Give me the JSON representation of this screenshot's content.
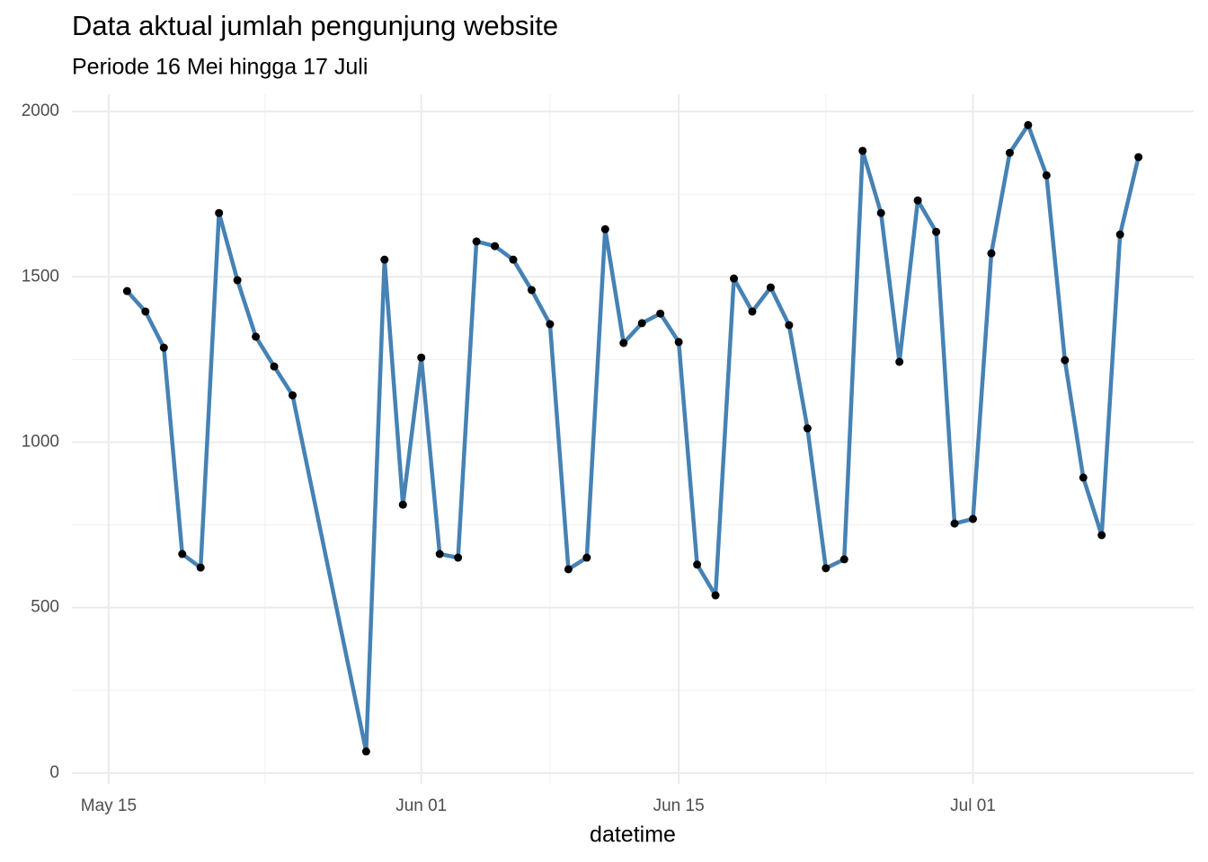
{
  "chart_data": {
    "type": "line",
    "title": "Data aktual jumlah pengunjung website",
    "subtitle": "Periode 16 Mei hingga 17 Juli",
    "x_label": "datetime",
    "x": [
      "05-16",
      "05-17",
      "05-18",
      "05-19",
      "05-20",
      "05-21",
      "05-22",
      "05-23",
      "05-24",
      "05-25",
      "05-29",
      "05-30",
      "05-31",
      "06-01",
      "06-02",
      "06-03",
      "06-04",
      "06-05",
      "06-06",
      "06-07",
      "06-08",
      "06-09",
      "06-10",
      "06-11",
      "06-12",
      "06-13",
      "06-14",
      "06-15",
      "06-16",
      "06-17",
      "06-18",
      "06-19",
      "06-20",
      "06-21",
      "06-22",
      "06-23",
      "06-24",
      "06-25",
      "06-26",
      "06-27",
      "06-28",
      "06-29",
      "06-30",
      "07-01",
      "07-02",
      "07-03",
      "07-04",
      "07-05",
      "07-06",
      "07-07",
      "07-08",
      "07-09",
      "07-10"
    ],
    "values": [
      1457,
      1395,
      1286,
      662,
      621,
      1693,
      1490,
      1319,
      1229,
      1142,
      65,
      1552,
      811,
      1256,
      662,
      651,
      1607,
      1593,
      1552,
      1460,
      1357,
      616,
      651,
      1644,
      1300,
      1360,
      1389,
      1303,
      630,
      537,
      1495,
      1395,
      1468,
      1354,
      1042,
      619,
      646,
      1881,
      1693,
      1243,
      1731,
      1636,
      754,
      768,
      1571,
      1875,
      1959,
      1807,
      1248,
      893,
      719,
      1628,
      1862
    ],
    "color": "#4682b4",
    "point_color": "#000000",
    "xlim": [
      "05-13",
      "07-13"
    ],
    "xticks": [
      {
        "value": "05-15",
        "label": "May 15"
      },
      {
        "value": "06-01",
        "label": "Jun 01"
      },
      {
        "value": "06-15",
        "label": "Jun 15"
      },
      {
        "value": "07-01",
        "label": "Jul 01"
      }
    ],
    "ylim": [
      -33,
      2052
    ],
    "yticks": [
      0,
      500,
      1000,
      1500,
      2000
    ],
    "grid": true
  }
}
